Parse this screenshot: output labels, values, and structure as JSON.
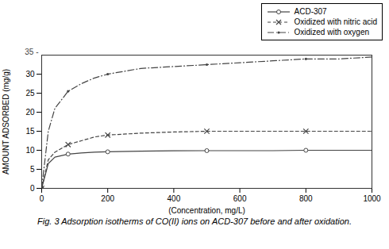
{
  "chart_data": {
    "type": "line",
    "title": "Fig. 3 Adsorption isotherms of CO(II) ions on ACD-307 before and after oxidation.",
    "x_label": "(Concentration, mg/L)",
    "y_label": "AMOUNT ADSORBED (mg/g)",
    "annotations": [
      "35 -"
    ],
    "xlim": [
      0,
      1000
    ],
    "ylim": [
      0,
      35
    ],
    "xticks": [
      0,
      200,
      400,
      600,
      800,
      1000
    ],
    "yticks": [
      0,
      5,
      10,
      15,
      20,
      25,
      30
    ],
    "legend": "upper right",
    "series": [
      {
        "color": "#888888",
        "line_style": "dotted",
        "x": [
          0,
          200,
          400,
          600,
          800,
          1000
        ],
        "values": [
          0,
          0,
          0,
          0,
          0,
          0
        ]
      },
      {
        "name": "ACD-307",
        "color": "#444444",
        "line_style": "solid",
        "marker": "circle",
        "x": [
          0,
          20,
          40,
          80,
          120,
          160,
          200,
          300,
          400,
          500,
          600,
          700,
          800,
          900,
          1000
        ],
        "values": [
          0,
          6.5,
          8.2,
          9.0,
          9.3,
          9.5,
          9.6,
          9.75,
          9.85,
          9.9,
          9.9,
          9.9,
          10.0,
          10.0,
          10.0
        ]
      },
      {
        "name": "Oxidized with nitric acid",
        "color": "#444444",
        "line_style": "dashed",
        "marker": "x",
        "x": [
          0,
          20,
          40,
          80,
          120,
          160,
          200,
          300,
          400,
          500,
          600,
          700,
          800,
          900,
          1000
        ],
        "values": [
          0,
          7.5,
          9.5,
          11.5,
          12.5,
          13.5,
          14.0,
          14.5,
          14.8,
          15.0,
          15.0,
          15.0,
          15.0,
          15.0,
          15.0
        ]
      },
      {
        "name": "Oxidized with oxygen",
        "color": "#444444",
        "line_style": "dashdot",
        "marker": "dot",
        "x": [
          0,
          20,
          40,
          80,
          120,
          160,
          200,
          300,
          400,
          500,
          600,
          700,
          800,
          900,
          1000
        ],
        "values": [
          0,
          15.0,
          21.0,
          25.5,
          27.5,
          29.0,
          30.0,
          31.5,
          32.0,
          32.5,
          33.0,
          33.5,
          34.0,
          34.0,
          34.5
        ]
      }
    ]
  }
}
